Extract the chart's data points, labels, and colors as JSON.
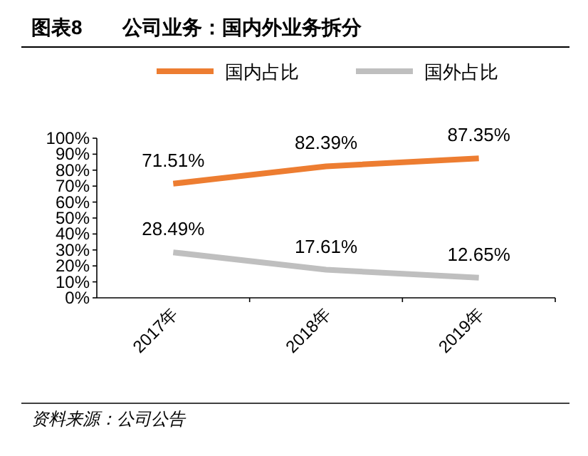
{
  "chart_data": {
    "type": "line",
    "title": "图表8　　公司业务：国内外业务拆分",
    "categories": [
      "2017年",
      "2018年",
      "2019年"
    ],
    "series": [
      {
        "name": "国内占比",
        "color": "#ed7d31",
        "values": [
          71.51,
          82.39,
          87.35
        ],
        "value_labels": [
          "71.51%",
          "82.39%",
          "87.35%"
        ]
      },
      {
        "name": "国外占比",
        "color": "#bfbfbf",
        "values": [
          28.49,
          17.61,
          12.65
        ],
        "value_labels": [
          "28.49%",
          "17.61%",
          "12.65%"
        ]
      }
    ],
    "ylim": [
      0,
      100
    ],
    "yticks": [
      {
        "value": 0,
        "label": "0%"
      },
      {
        "value": 10,
        "label": "10%"
      },
      {
        "value": 20,
        "label": "20%"
      },
      {
        "value": 30,
        "label": "30%"
      },
      {
        "value": 40,
        "label": "40%"
      },
      {
        "value": 50,
        "label": "50%"
      },
      {
        "value": 60,
        "label": "60%"
      },
      {
        "value": 70,
        "label": "70%"
      },
      {
        "value": 80,
        "label": "80%"
      },
      {
        "value": 90,
        "label": "90%"
      },
      {
        "value": 100,
        "label": "100%"
      }
    ],
    "legend": "top",
    "grid": false,
    "annotations": [
      "资料来源：公司公告"
    ]
  }
}
